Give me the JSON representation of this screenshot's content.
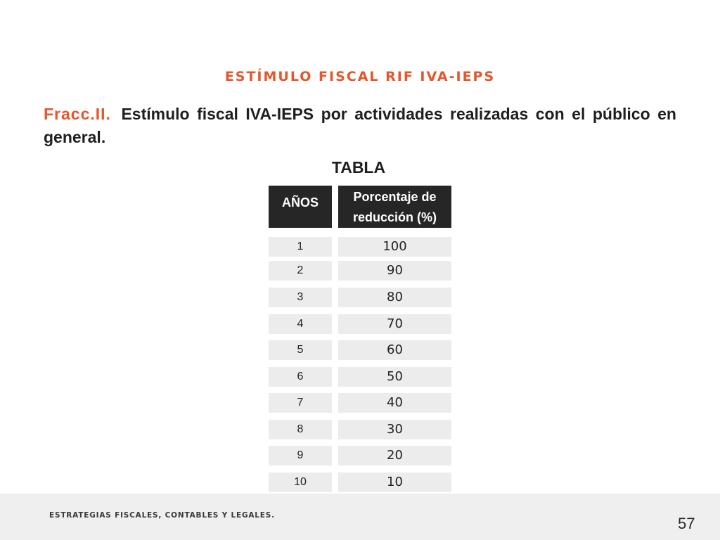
{
  "slide": {
    "title": "ESTÍMULO FISCAL RIF IVA-IEPS",
    "intro_lead": "Fracc.II.",
    "intro_text": "Estímulo fiscal IVA-IEPS por actividades realizadas con el público en general.",
    "table_heading": "TABLA"
  },
  "table": {
    "headers": {
      "years": "AÑOS",
      "percentage": "Porcentaje de reducción (%)"
    },
    "rows": [
      {
        "year": "1",
        "value": "100"
      },
      {
        "year": "2",
        "value": "90"
      },
      {
        "year": "3",
        "value": "80"
      },
      {
        "year": "4",
        "value": "70"
      },
      {
        "year": "5",
        "value": "60"
      },
      {
        "year": "6",
        "value": "50"
      },
      {
        "year": "7",
        "value": "40"
      },
      {
        "year": "8",
        "value": "30"
      },
      {
        "year": "9",
        "value": "20"
      },
      {
        "year": "10",
        "value": "10"
      }
    ]
  },
  "footer": {
    "text": "ESTRATEGIAS FISCALES, CONTABLES Y LEGALES.",
    "page_number": "57"
  },
  "colors": {
    "accent": "#e8552a",
    "header_bg": "#262626",
    "row_bg": "#ececec",
    "footer_bg": "#efefef"
  }
}
